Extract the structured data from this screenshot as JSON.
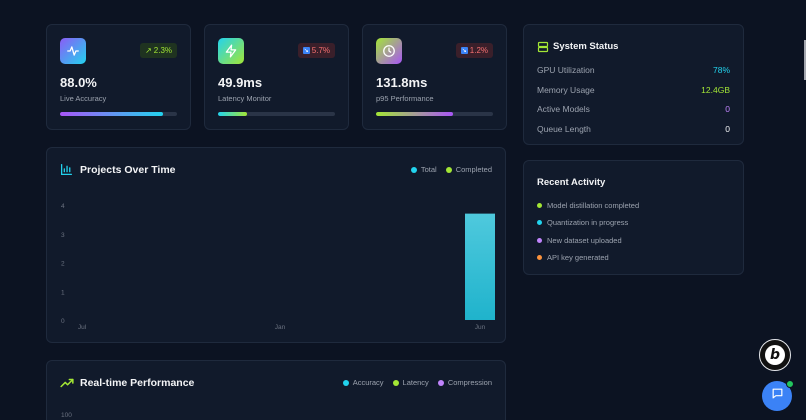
{
  "metrics": [
    {
      "icon": "activity-icon",
      "value": "88.0%",
      "label": "Live Accuracy",
      "badge": "2.3%",
      "badge_icon": "trend-up-icon",
      "progress": 0.88,
      "badge_color": "#a3e635",
      "gradient": [
        "#a855f7",
        "#22d3ee"
      ]
    },
    {
      "icon": "lightning-icon",
      "value": "49.9ms",
      "label": "Latency Monitor",
      "badge": "5.7%",
      "badge_icon": "trend-down-icon",
      "progress": 0.25,
      "badge_color": "#f87171",
      "gradient": [
        "#22d3ee",
        "#a3e635"
      ]
    },
    {
      "icon": "clock-icon",
      "value": "131.8ms",
      "label": "p95 Performance",
      "badge": "1.2%",
      "badge_icon": "trend-down-icon",
      "progress": 0.66,
      "badge_color": "#f87171",
      "gradient": [
        "#a3e635",
        "#a855f7"
      ]
    }
  ],
  "projects": {
    "title": "Projects Over Time",
    "legend": [
      {
        "label": "Total",
        "color": "#22d3ee"
      },
      {
        "label": "Completed",
        "color": "#a3e635"
      }
    ]
  },
  "chart_data": {
    "type": "bar",
    "categories": [
      "Jul",
      "Jan",
      "Jun"
    ],
    "series": [
      {
        "name": "Total",
        "values": [
          0,
          0,
          3.7
        ]
      }
    ],
    "yticks": [
      0,
      1,
      2,
      3,
      4
    ],
    "ylim": [
      0,
      4
    ]
  },
  "system_status": {
    "title": "System Status",
    "rows": [
      {
        "label": "GPU Utilization",
        "value": "78%",
        "color": "#22d3ee"
      },
      {
        "label": "Memory Usage",
        "value": "12.4GB",
        "color": "#a3e635"
      },
      {
        "label": "Active Models",
        "value": "0",
        "color": "#c084fc"
      },
      {
        "label": "Queue Length",
        "value": "0",
        "color": "#f3f4f6"
      }
    ]
  },
  "recent_activity": {
    "title": "Recent Activity",
    "items": [
      {
        "label": "Model distillation completed",
        "color": "#a3e635"
      },
      {
        "label": "Quantization in progress",
        "color": "#22d3ee"
      },
      {
        "label": "New dataset uploaded",
        "color": "#c084fc"
      },
      {
        "label": "API key generated",
        "color": "#fb923c"
      }
    ]
  },
  "realtime": {
    "title": "Real-time Performance",
    "legend": [
      {
        "label": "Accuracy",
        "color": "#22d3ee"
      },
      {
        "label": "Latency",
        "color": "#a3e635"
      },
      {
        "label": "Compression",
        "color": "#c084fc"
      }
    ],
    "ytick_top": "100"
  },
  "colors": {
    "background": "#0c1322",
    "card": "#111a2b",
    "accent_cyan": "#22d3ee",
    "accent_lime": "#a3e635",
    "accent_purple": "#c084fc"
  }
}
